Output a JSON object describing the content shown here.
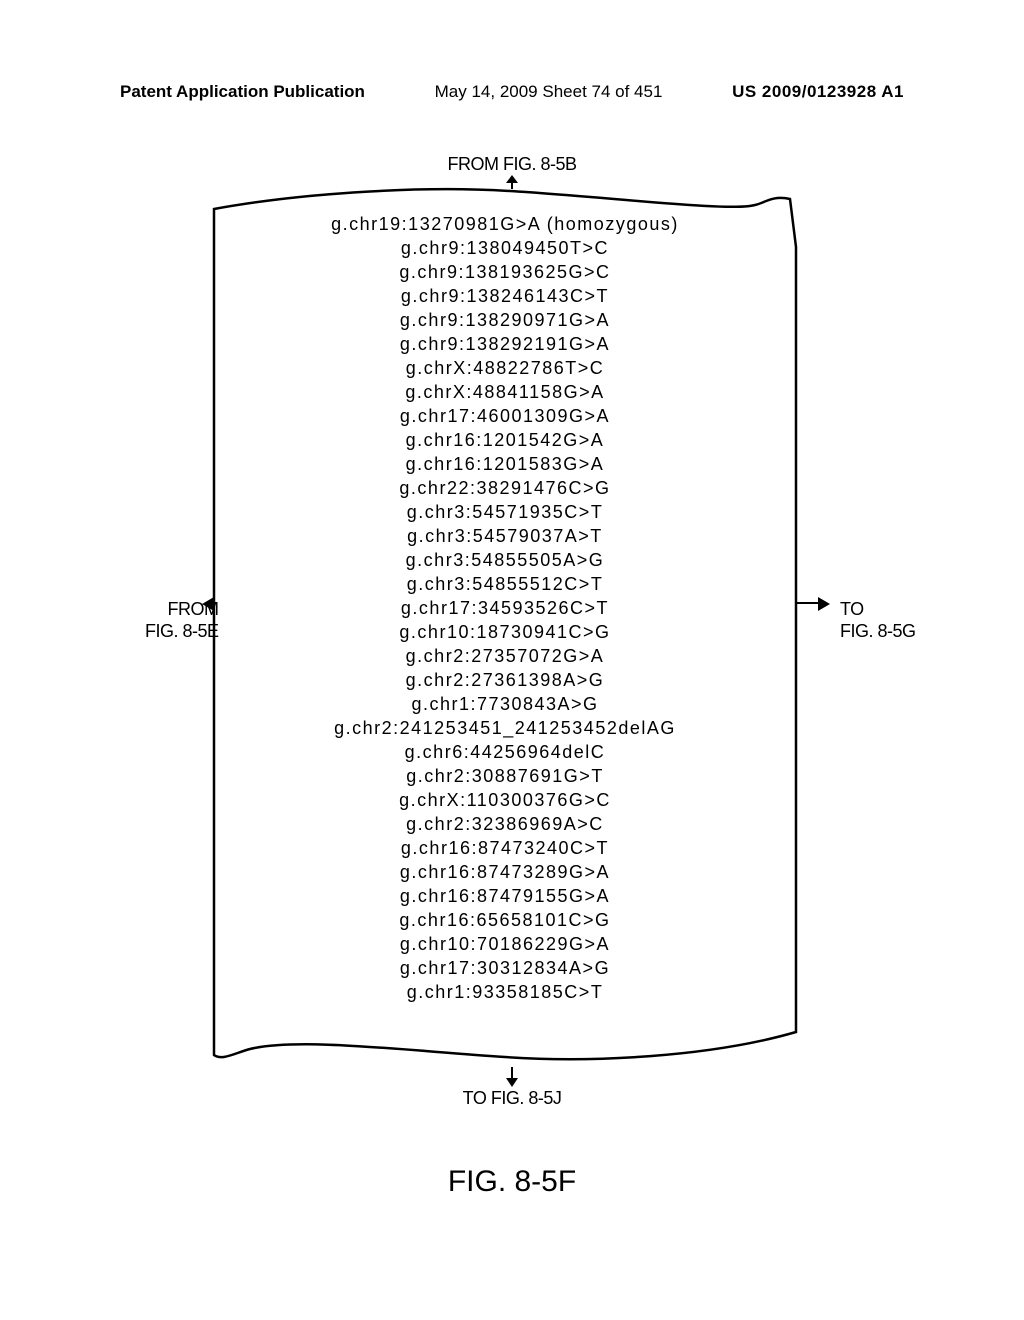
{
  "header": {
    "left": "Patent Application Publication",
    "center": "May 14, 2009  Sheet 74 of 451",
    "right": "US 2009/0123928 A1"
  },
  "labels": {
    "top": "FROM FIG. 8-5B",
    "leftFrom": "FROM",
    "leftFig": "FIG. 8-5E",
    "rightTo": "TO",
    "rightFig": "FIG. 8-5G",
    "bottom": "TO FIG. 8-5J"
  },
  "caption": "FIG. 8-5F",
  "variants": [
    "g.chr19:13270981G>A (homozygous)",
    "g.chr9:138049450T>C",
    "g.chr9:138193625G>C",
    "g.chr9:138246143C>T",
    "g.chr9:138290971G>A",
    "g.chr9:138292191G>A",
    "g.chrX:48822786T>C",
    "g.chrX:48841158G>A",
    "g.chr17:46001309G>A",
    "g.chr16:1201542G>A",
    "g.chr16:1201583G>A",
    "g.chr22:38291476C>G",
    "g.chr3:54571935C>T",
    "g.chr3:54579037A>T",
    "g.chr3:54855505A>G",
    "g.chr3:54855512C>T",
    "g.chr17:34593526C>T",
    "g.chr10:18730941C>G",
    "g.chr2:27357072G>A",
    "g.chr2:27361398A>G",
    "g.chr1:7730843A>G",
    "g.chr2:241253451_241253452delAG",
    "g.chr6:44256964delC",
    "g.chr2:30887691G>T",
    "g.chrX:110300376G>C",
    "g.chr2:32386969A>C",
    "g.chr16:87473240C>T",
    "g.chr16:87473289G>A",
    "g.chr16:87479155G>A",
    "g.chr16:65658101C>G",
    "g.chr10:70186229G>A",
    "g.chr17:30312834A>G",
    "g.chr1:93358185C>T"
  ],
  "style": {
    "page_bg": "#ffffff",
    "stroke": "#000000",
    "stroke_width": 2.5,
    "variant_fontsize": 18,
    "variant_letterspacing": 1.5,
    "variant_lineheight": 24,
    "label_fontsize": 18,
    "caption_fontsize": 30
  }
}
